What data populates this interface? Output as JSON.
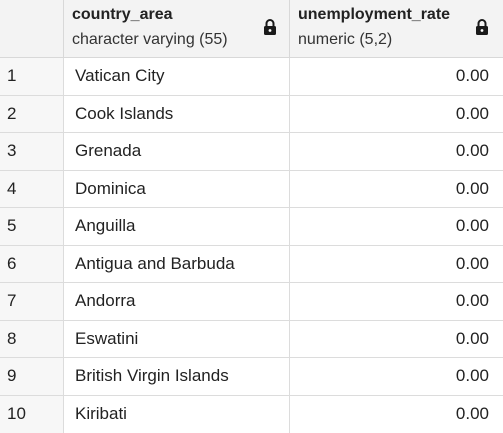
{
  "columns": [
    {
      "name": "country_area",
      "type": "character varying (55)",
      "icon": "lock-icon"
    },
    {
      "name": "unemployment_rate",
      "type": "numeric (5,2)",
      "icon": "lock-icon"
    }
  ],
  "rows": [
    {
      "num": "1",
      "country_area": "Vatican City",
      "unemployment_rate": "0.00"
    },
    {
      "num": "2",
      "country_area": "Cook Islands",
      "unemployment_rate": "0.00"
    },
    {
      "num": "3",
      "country_area": "Grenada",
      "unemployment_rate": "0.00"
    },
    {
      "num": "4",
      "country_area": "Dominica",
      "unemployment_rate": "0.00"
    },
    {
      "num": "5",
      "country_area": "Anguilla",
      "unemployment_rate": "0.00"
    },
    {
      "num": "6",
      "country_area": "Antigua and Barbuda",
      "unemployment_rate": "0.00"
    },
    {
      "num": "7",
      "country_area": "Andorra",
      "unemployment_rate": "0.00"
    },
    {
      "num": "8",
      "country_area": "Eswatini",
      "unemployment_rate": "0.00"
    },
    {
      "num": "9",
      "country_area": "British Virgin Islands",
      "unemployment_rate": "0.00"
    },
    {
      "num": "10",
      "country_area": "Kiribati",
      "unemployment_rate": "0.00"
    }
  ]
}
